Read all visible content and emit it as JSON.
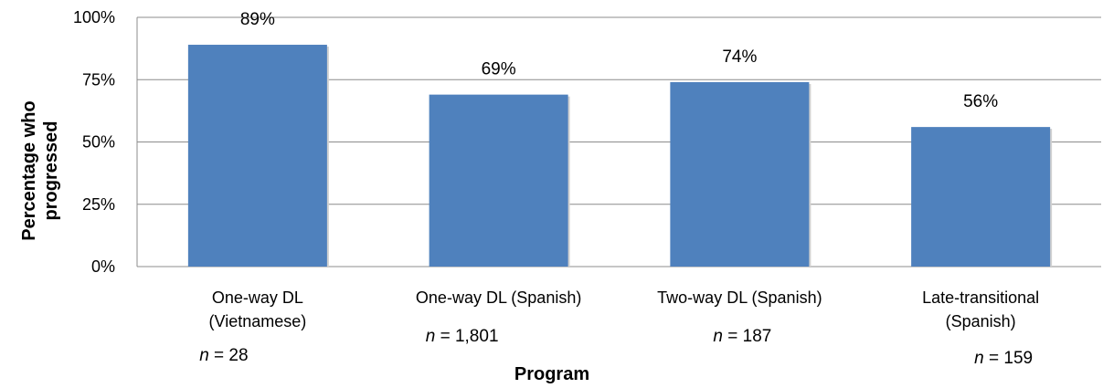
{
  "chart_data": {
    "type": "bar",
    "categories": [
      [
        "One-way DL",
        "(Vietnamese)"
      ],
      [
        "One-way DL (Spanish)"
      ],
      [
        "Two-way DL (Spanish)"
      ],
      [
        "Late-transitional",
        "(Spanish)"
      ]
    ],
    "sample_sizes": [
      {
        "prefix": "n",
        "text": " = 28"
      },
      {
        "prefix": "n",
        "text": " = 1,801"
      },
      {
        "prefix": "n",
        "text": " = 187"
      },
      {
        "prefix": "n",
        "text": " = 159"
      }
    ],
    "values": [
      89,
      69,
      74,
      56
    ],
    "data_labels": [
      "89%",
      "69%",
      "74%",
      "56%"
    ],
    "ylim": [
      0,
      100
    ],
    "yticks": [
      0,
      25,
      50,
      75,
      100
    ],
    "ytick_labels": [
      "0%",
      "25%",
      "50%",
      "75%",
      "100%"
    ],
    "xlabel": "Program",
    "ylabel": [
      "Percentage who",
      "progressed"
    ],
    "grid": true,
    "bar_color": "#4F81BD",
    "grid_color": "#8C8C8C"
  }
}
